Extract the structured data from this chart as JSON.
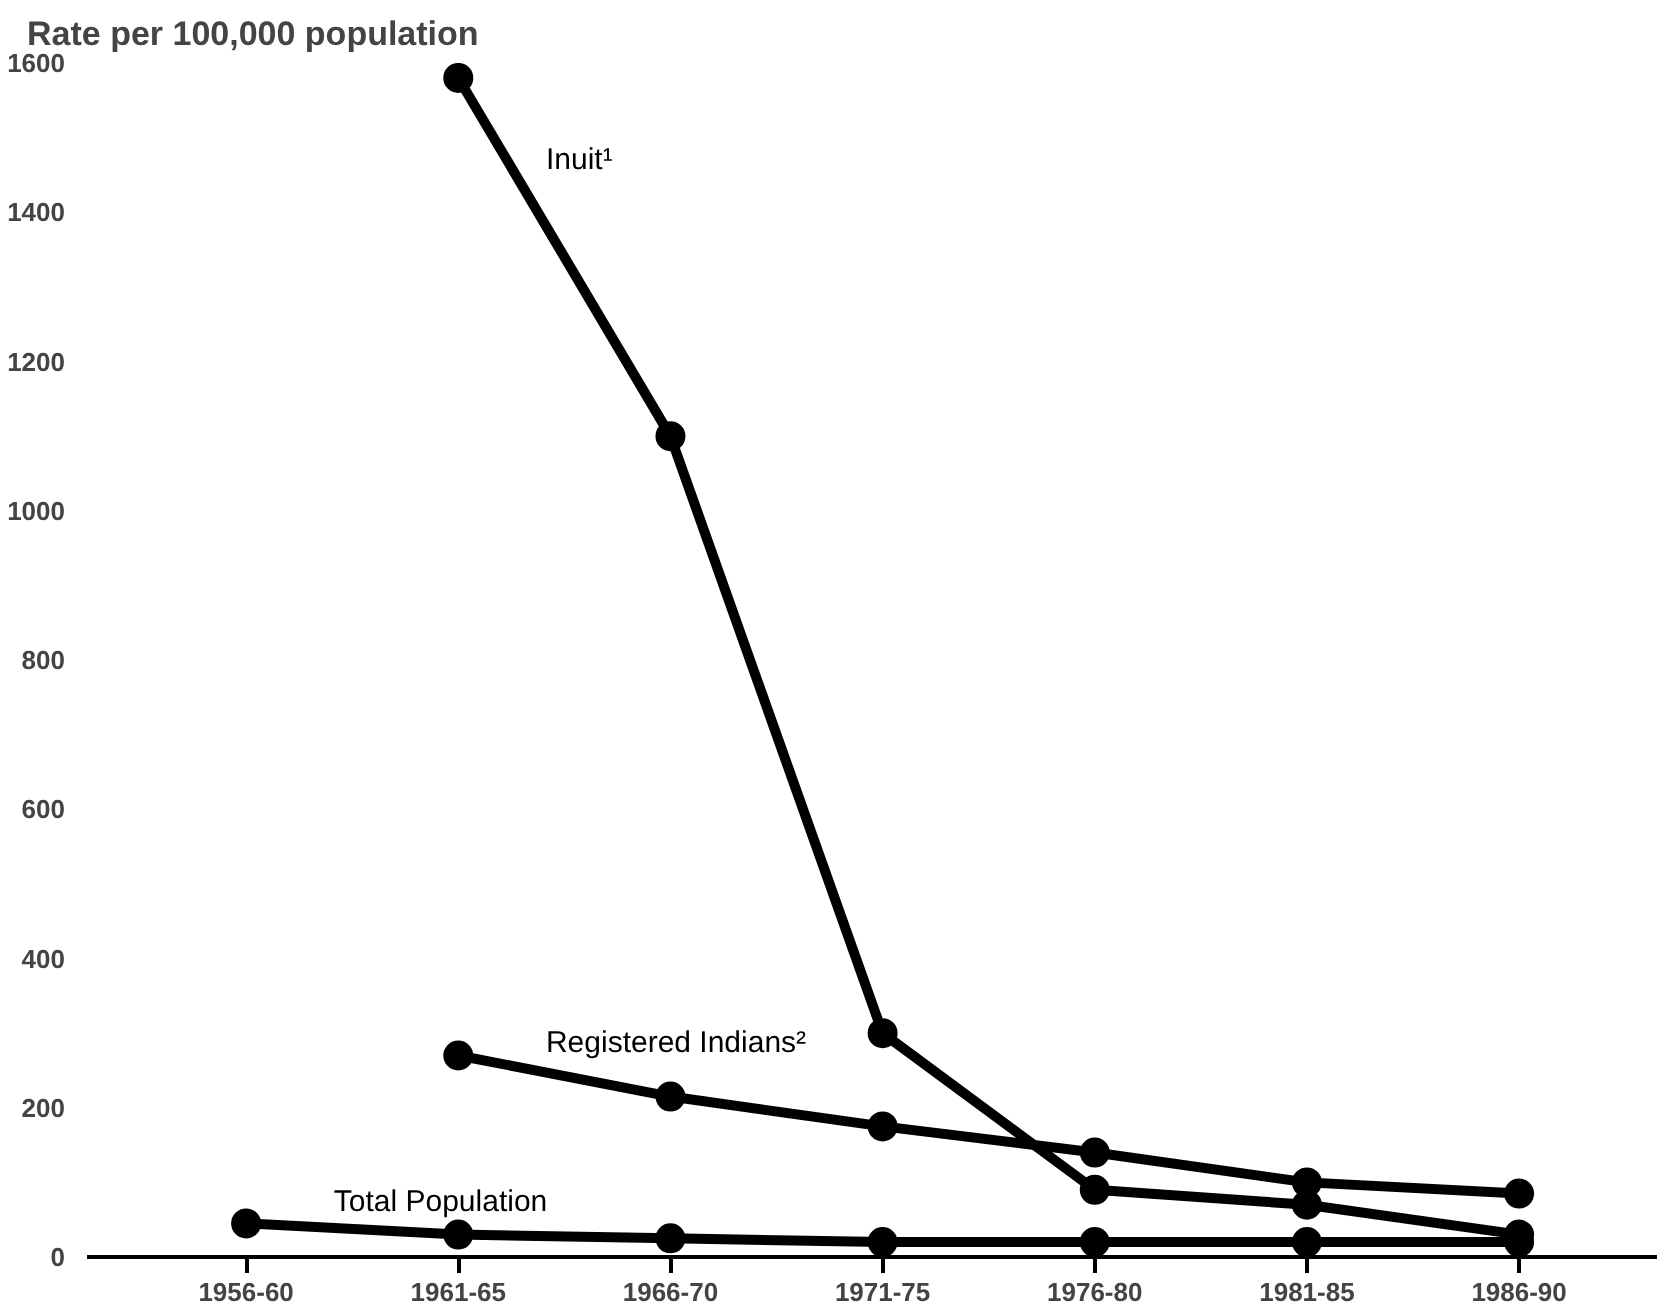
{
  "chart_data": {
    "type": "line",
    "ylabel": "Rate per 100,000 population",
    "categories": [
      "1956-60",
      "1961-65",
      "1966-70",
      "1971-75",
      "1976-80",
      "1981-85",
      "1986-90"
    ],
    "series": [
      {
        "name": "Inuit¹",
        "color": "#000000",
        "values": [
          null,
          1580,
          1100,
          300,
          90,
          70,
          30
        ]
      },
      {
        "name": "Registered Indians²",
        "color": "#000000",
        "values": [
          null,
          270,
          215,
          175,
          140,
          100,
          85
        ]
      },
      {
        "name": "Total Population",
        "color": "#000000",
        "values": [
          45,
          30,
          25,
          20,
          20,
          20,
          20
        ]
      }
    ],
    "ylim": [
      0,
      1600
    ],
    "yticks": [
      0,
      200,
      400,
      600,
      800,
      1000,
      1200,
      1400,
      1600
    ],
    "grid": false,
    "marker": "circle",
    "line_style": "solid"
  }
}
